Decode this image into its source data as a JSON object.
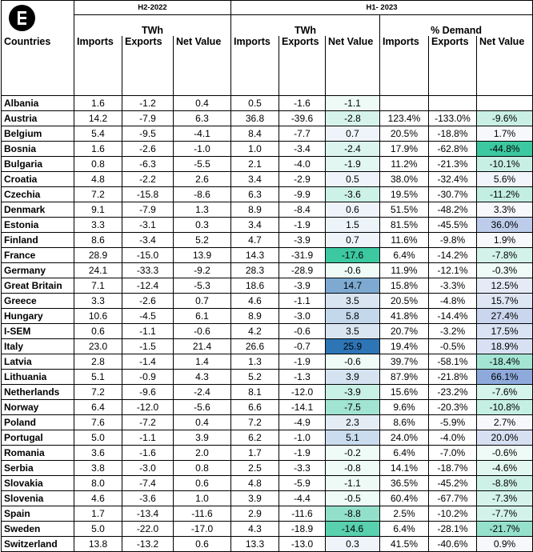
{
  "header": {
    "h2_2022": "H2-2022",
    "h1_2023": "H1- 2023",
    "twh": "TWh",
    "pct_demand": "% Demand",
    "countries": "Countries",
    "imports": "Imports",
    "exports": "Exports",
    "net_value": "Net Value"
  },
  "logo_icon": "e-logo-icon",
  "colors": {
    "net_positive_strong": "#2e75b6",
    "net_negative_strong": "#3cc8a0",
    "pct_positive_strong": "#8ea9db",
    "pct_negative_strong": "#3cc8a0"
  },
  "rows": [
    {
      "country": "Albania",
      "h2_imp": "1.6",
      "h2_exp": "-1.2",
      "h2_net": "0.4",
      "h1_imp": "0.5",
      "h1_exp": "-1.6",
      "h1_net": "-1.1",
      "p_imp": "",
      "p_exp": "",
      "p_net": ""
    },
    {
      "country": "Austria",
      "h2_imp": "14.2",
      "h2_exp": "-7.9",
      "h2_net": "6.3",
      "h1_imp": "36.8",
      "h1_exp": "-39.6",
      "h1_net": "-2.8",
      "p_imp": "123.4%",
      "p_exp": "-133.0%",
      "p_net": "-9.6%"
    },
    {
      "country": "Belgium",
      "h2_imp": "5.4",
      "h2_exp": "-9.5",
      "h2_net": "-4.1",
      "h1_imp": "8.4",
      "h1_exp": "-7.7",
      "h1_net": "0.7",
      "p_imp": "20.5%",
      "p_exp": "-18.8%",
      "p_net": "1.7%"
    },
    {
      "country": "Bosnia",
      "h2_imp": "1.6",
      "h2_exp": "-2.6",
      "h2_net": "-1.0",
      "h1_imp": "1.0",
      "h1_exp": "-3.4",
      "h1_net": "-2.4",
      "p_imp": "17.9%",
      "p_exp": "-62.8%",
      "p_net": "-44.8%"
    },
    {
      "country": "Bulgaria",
      "h2_imp": "0.8",
      "h2_exp": "-6.3",
      "h2_net": "-5.5",
      "h1_imp": "2.1",
      "h1_exp": "-4.0",
      "h1_net": "-1.9",
      "p_imp": "11.2%",
      "p_exp": "-21.3%",
      "p_net": "-10.1%"
    },
    {
      "country": "Croatia",
      "h2_imp": "4.8",
      "h2_exp": "-2.2",
      "h2_net": "2.6",
      "h1_imp": "3.4",
      "h1_exp": "-2.9",
      "h1_net": "0.5",
      "p_imp": "38.0%",
      "p_exp": "-32.4%",
      "p_net": "5.6%"
    },
    {
      "country": "Czechia",
      "h2_imp": "7.2",
      "h2_exp": "-15.8",
      "h2_net": "-8.6",
      "h1_imp": "6.3",
      "h1_exp": "-9.9",
      "h1_net": "-3.6",
      "p_imp": "19.5%",
      "p_exp": "-30.7%",
      "p_net": "-11.2%"
    },
    {
      "country": "Denmark",
      "h2_imp": "9.1",
      "h2_exp": "-7.9",
      "h2_net": "1.3",
      "h1_imp": "8.9",
      "h1_exp": "-8.4",
      "h1_net": "0.6",
      "p_imp": "51.5%",
      "p_exp": "-48.2%",
      "p_net": "3.3%"
    },
    {
      "country": "Estonia",
      "h2_imp": "3.3",
      "h2_exp": "-3.1",
      "h2_net": "0.3",
      "h1_imp": "3.4",
      "h1_exp": "-1.9",
      "h1_net": "1.5",
      "p_imp": "81.5%",
      "p_exp": "-45.5%",
      "p_net": "36.0%"
    },
    {
      "country": "Finland",
      "h2_imp": "8.6",
      "h2_exp": "-3.4",
      "h2_net": "5.2",
      "h1_imp": "4.7",
      "h1_exp": "-3.9",
      "h1_net": "0.7",
      "p_imp": "11.6%",
      "p_exp": "-9.8%",
      "p_net": "1.9%"
    },
    {
      "country": "France",
      "h2_imp": "28.9",
      "h2_exp": "-15.0",
      "h2_net": "13.9",
      "h1_imp": "14.3",
      "h1_exp": "-31.9",
      "h1_net": "-17.6",
      "p_imp": "6.4%",
      "p_exp": "-14.2%",
      "p_net": "-7.8%"
    },
    {
      "country": "Germany",
      "h2_imp": "24.1",
      "h2_exp": "-33.3",
      "h2_net": "-9.2",
      "h1_imp": "28.3",
      "h1_exp": "-28.9",
      "h1_net": "-0.6",
      "p_imp": "11.9%",
      "p_exp": "-12.1%",
      "p_net": "-0.3%"
    },
    {
      "country": "Great Britain",
      "h2_imp": "7.1",
      "h2_exp": "-12.4",
      "h2_net": "-5.3",
      "h1_imp": "18.6",
      "h1_exp": "-3.9",
      "h1_net": "14.7",
      "p_imp": "15.8%",
      "p_exp": "-3.3%",
      "p_net": "12.5%"
    },
    {
      "country": "Greece",
      "h2_imp": "3.3",
      "h2_exp": "-2.6",
      "h2_net": "0.7",
      "h1_imp": "4.6",
      "h1_exp": "-1.1",
      "h1_net": "3.5",
      "p_imp": "20.5%",
      "p_exp": "-4.8%",
      "p_net": "15.7%"
    },
    {
      "country": "Hungary",
      "h2_imp": "10.6",
      "h2_exp": "-4.5",
      "h2_net": "6.1",
      "h1_imp": "8.9",
      "h1_exp": "-3.0",
      "h1_net": "5.8",
      "p_imp": "41.8%",
      "p_exp": "-14.4%",
      "p_net": "27.4%"
    },
    {
      "country": "I-SEM",
      "h2_imp": "0.6",
      "h2_exp": "-1.1",
      "h2_net": "-0.6",
      "h1_imp": "4.2",
      "h1_exp": "-0.6",
      "h1_net": "3.5",
      "p_imp": "20.7%",
      "p_exp": "-3.2%",
      "p_net": "17.5%"
    },
    {
      "country": "Italy",
      "h2_imp": "23.0",
      "h2_exp": "-1.5",
      "h2_net": "21.4",
      "h1_imp": "26.6",
      "h1_exp": "-0.7",
      "h1_net": "25.9",
      "p_imp": "19.4%",
      "p_exp": "-0.5%",
      "p_net": "18.9%"
    },
    {
      "country": "Latvia",
      "h2_imp": "2.8",
      "h2_exp": "-1.4",
      "h2_net": "1.4",
      "h1_imp": "1.3",
      "h1_exp": "-1.9",
      "h1_net": "-0.6",
      "p_imp": "39.7%",
      "p_exp": "-58.1%",
      "p_net": "-18.4%"
    },
    {
      "country": "Lithuania",
      "h2_imp": "5.1",
      "h2_exp": "-0.9",
      "h2_net": "4.3",
      "h1_imp": "5.2",
      "h1_exp": "-1.3",
      "h1_net": "3.9",
      "p_imp": "87.9%",
      "p_exp": "-21.8%",
      "p_net": "66.1%"
    },
    {
      "country": "Netherlands",
      "h2_imp": "7.2",
      "h2_exp": "-9.6",
      "h2_net": "-2.4",
      "h1_imp": "8.1",
      "h1_exp": "-12.0",
      "h1_net": "-3.9",
      "p_imp": "15.6%",
      "p_exp": "-23.2%",
      "p_net": "-7.6%"
    },
    {
      "country": "Norway",
      "h2_imp": "6.4",
      "h2_exp": "-12.0",
      "h2_net": "-5.6",
      "h1_imp": "6.6",
      "h1_exp": "-14.1",
      "h1_net": "-7.5",
      "p_imp": "9.6%",
      "p_exp": "-20.3%",
      "p_net": "-10.8%"
    },
    {
      "country": "Poland",
      "h2_imp": "7.6",
      "h2_exp": "-7.2",
      "h2_net": "0.4",
      "h1_imp": "7.2",
      "h1_exp": "-4.9",
      "h1_net": "2.3",
      "p_imp": "8.6%",
      "p_exp": "-5.9%",
      "p_net": "2.7%"
    },
    {
      "country": "Portugal",
      "h2_imp": "5.0",
      "h2_exp": "-1.1",
      "h2_net": "3.9",
      "h1_imp": "6.2",
      "h1_exp": "-1.0",
      "h1_net": "5.1",
      "p_imp": "24.0%",
      "p_exp": "-4.0%",
      "p_net": "20.0%"
    },
    {
      "country": "Romania",
      "h2_imp": "3.6",
      "h2_exp": "-1.6",
      "h2_net": "2.0",
      "h1_imp": "1.7",
      "h1_exp": "-1.9",
      "h1_net": "-0.2",
      "p_imp": "6.4%",
      "p_exp": "-7.0%",
      "p_net": "-0.6%"
    },
    {
      "country": "Serbia",
      "h2_imp": "3.8",
      "h2_exp": "-3.0",
      "h2_net": "0.8",
      "h1_imp": "2.5",
      "h1_exp": "-3.3",
      "h1_net": "-0.8",
      "p_imp": "14.1%",
      "p_exp": "-18.7%",
      "p_net": "-4.6%"
    },
    {
      "country": "Slovakia",
      "h2_imp": "8.0",
      "h2_exp": "-7.4",
      "h2_net": "0.6",
      "h1_imp": "4.8",
      "h1_exp": "-5.9",
      "h1_net": "-1.1",
      "p_imp": "36.5%",
      "p_exp": "-45.2%",
      "p_net": "-8.8%"
    },
    {
      "country": "Slovenia",
      "h2_imp": "4.6",
      "h2_exp": "-3.6",
      "h2_net": "1.0",
      "h1_imp": "3.9",
      "h1_exp": "-4.4",
      "h1_net": "-0.5",
      "p_imp": "60.4%",
      "p_exp": "-67.7%",
      "p_net": "-7.3%"
    },
    {
      "country": "Spain",
      "h2_imp": "1.7",
      "h2_exp": "-13.4",
      "h2_net": "-11.6",
      "h1_imp": "2.9",
      "h1_exp": "-11.6",
      "h1_net": "-8.8",
      "p_imp": "2.5%",
      "p_exp": "-10.2%",
      "p_net": "-7.7%"
    },
    {
      "country": "Sweden",
      "h2_imp": "5.0",
      "h2_exp": "-22.0",
      "h2_net": "-17.0",
      "h1_imp": "4.3",
      "h1_exp": "-18.9",
      "h1_net": "-14.6",
      "p_imp": "6.4%",
      "p_exp": "-28.1%",
      "p_net": "-21.7%"
    },
    {
      "country": "Switzerland",
      "h2_imp": "13.8",
      "h2_exp": "-13.2",
      "h2_net": "0.6",
      "h1_imp": "13.3",
      "h1_exp": "-13.0",
      "h1_net": "0.3",
      "p_imp": "41.5%",
      "p_exp": "-40.6%",
      "p_net": "0.9%"
    }
  ]
}
